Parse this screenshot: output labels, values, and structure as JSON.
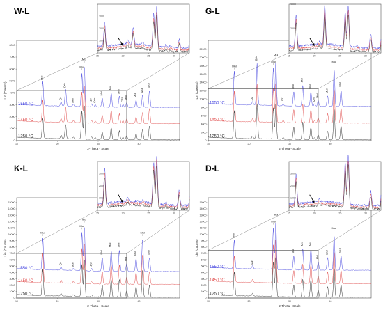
{
  "figure_title": "",
  "chart_data": [
    {
      "type": "line",
      "panel_label": "W-L",
      "xlabel": "2-Theta - Scale",
      "ylabel": "Lin (Counts)",
      "xlim": [
        10,
        50
      ],
      "ylim": [
        0,
        8000
      ],
      "x_ticks": [
        "10",
        "20",
        "30",
        "40"
      ],
      "y_ticks": [
        "0",
        "1000",
        "2000",
        "3000",
        "4000",
        "5000",
        "6000",
        "7000",
        "8000"
      ],
      "series": [
        {
          "name": "1550 °C",
          "color": "#4a4ae0",
          "offset": 2700
        },
        {
          "name": "1450 °C",
          "color": "#e04a4a",
          "offset": 1350
        },
        {
          "name": "1250 °C",
          "color": "#333333",
          "offset": 0
        }
      ],
      "peaks": [
        {
          "x": 16.4,
          "h": 2000,
          "label": "Mul"
        },
        {
          "x": 20.9,
          "h": 350,
          "label": "Qz"
        },
        {
          "x": 22.0,
          "h": 1400,
          "label": "Cris"
        },
        {
          "x": 23.9,
          "h": 180,
          "label": "Mul"
        },
        {
          "x": 26.0,
          "h": 2800,
          "label": "Mul"
        },
        {
          "x": 26.6,
          "h": 3400,
          "label": "Mul"
        },
        {
          "x": 28.4,
          "h": 250,
          "label": "Cr"
        },
        {
          "x": 29.3,
          "h": 200,
          "label": "Cris"
        },
        {
          "x": 31.0,
          "h": 750,
          "label": "Mul"
        },
        {
          "x": 33.2,
          "h": 1200,
          "label": "Mul"
        },
        {
          "x": 35.2,
          "h": 900,
          "label": "Mul"
        },
        {
          "x": 36.1,
          "h": 250,
          "label": "Cris"
        },
        {
          "x": 37.0,
          "h": 400,
          "label": "Mul"
        },
        {
          "x": 39.3,
          "h": 600,
          "label": "Mul"
        },
        {
          "x": 40.9,
          "h": 1000,
          "label": "Mul"
        },
        {
          "x": 42.6,
          "h": 1400,
          "label": "Mul"
        }
      ],
      "temperatures": [
        "1550 °C",
        "1450 °C",
        "1250 °C"
      ],
      "inset": {
        "xlim": [
          15,
          33
        ],
        "x_ticks": [
          "15",
          "20",
          "25",
          "30"
        ],
        "y_ticks": [
          "1000",
          "2000",
          "3000"
        ]
      },
      "zoom_box": {
        "xlim": [
          10,
          37
        ],
        "ylim": [
          0,
          4200
        ]
      }
    },
    {
      "type": "line",
      "panel_label": "G-L",
      "xlabel": "2-Theta - Scale",
      "ylabel": "Lin (Counts)",
      "xlim": [
        10,
        50
      ],
      "ylim": [
        0,
        23000
      ],
      "x_ticks": [
        "10",
        "20",
        "30",
        "40"
      ],
      "y_ticks": [
        "0",
        "2000",
        "4000",
        "6000",
        "8000",
        "10000",
        "12000",
        "14000",
        "16000",
        "18000",
        "20000",
        "22000"
      ],
      "series": [
        {
          "name": "1550 °C",
          "color": "#4a4ae0",
          "offset": 8000
        },
        {
          "name": "1450 °C",
          "color": "#e04a4a",
          "offset": 4000
        },
        {
          "name": "1250 °C",
          "color": "#333333",
          "offset": 0
        }
      ],
      "peaks": [
        {
          "x": 16.4,
          "h": 8000,
          "label": "Mul"
        },
        {
          "x": 20.9,
          "h": 800,
          "label": "Qz"
        },
        {
          "x": 22.0,
          "h": 10000,
          "label": "Cris"
        },
        {
          "x": 26.0,
          "h": 9000,
          "label": "Mul"
        },
        {
          "x": 26.6,
          "h": 10500,
          "label": "Mul"
        },
        {
          "x": 28.4,
          "h": 600,
          "label": "Cr"
        },
        {
          "x": 31.0,
          "h": 3500,
          "label": "Mul"
        },
        {
          "x": 33.2,
          "h": 5000,
          "label": "Mul"
        },
        {
          "x": 35.2,
          "h": 3500,
          "label": "Mul"
        },
        {
          "x": 36.1,
          "h": 600,
          "label": "Cris"
        },
        {
          "x": 37.0,
          "h": 1400,
          "label": "Mul"
        },
        {
          "x": 39.3,
          "h": 2500,
          "label": "Mul"
        },
        {
          "x": 40.9,
          "h": 9000,
          "label": "Mul"
        },
        {
          "x": 42.6,
          "h": 4000,
          "label": "Mul"
        }
      ],
      "temperatures": [
        "1550 °C",
        "1450 °C",
        "1250 °C"
      ],
      "inset": {
        "xlim": [
          15,
          33
        ],
        "x_ticks": [
          "15",
          "20",
          "25",
          "30"
        ],
        "y_ticks": [
          "2000",
          "4000",
          "6000"
        ]
      },
      "zoom_box": {
        "xlim": [
          10,
          37
        ],
        "ylim": [
          0,
          12500
        ]
      }
    },
    {
      "type": "line",
      "panel_label": "K-L",
      "xlabel": "2-Theta - Scale",
      "ylabel": "Lin (Counts)",
      "xlim": [
        10,
        50
      ],
      "ylim": [
        0,
        15000
      ],
      "x_ticks": [
        "10",
        "20",
        "30",
        "40"
      ],
      "y_ticks": [
        "0",
        "1000",
        "2000",
        "3000",
        "4000",
        "5000",
        "6000",
        "7000",
        "8000",
        "9000",
        "10000",
        "11000",
        "12000",
        "13000",
        "14000",
        "15000"
      ],
      "series": [
        {
          "name": "1550 °C",
          "color": "#4a4ae0",
          "offset": 4000
        },
        {
          "name": "1450 °C",
          "color": "#e04a4a",
          "offset": 2000
        },
        {
          "name": "1250 °C",
          "color": "#333333",
          "offset": 0
        }
      ],
      "peaks": [
        {
          "x": 16.4,
          "h": 5000,
          "label": "Mul"
        },
        {
          "x": 20.9,
          "h": 500,
          "label": "Qz"
        },
        {
          "x": 23.9,
          "h": 300,
          "label": "Mul"
        },
        {
          "x": 26.0,
          "h": 6000,
          "label": "Mul"
        },
        {
          "x": 26.6,
          "h": 7000,
          "label": "Mul"
        },
        {
          "x": 28.4,
          "h": 400,
          "label": "Qz"
        },
        {
          "x": 31.0,
          "h": 2200,
          "label": "Mul"
        },
        {
          "x": 33.2,
          "h": 3300,
          "label": "Mul"
        },
        {
          "x": 35.2,
          "h": 3300,
          "label": "Mul"
        },
        {
          "x": 37.0,
          "h": 1200,
          "label": "Mul"
        },
        {
          "x": 39.3,
          "h": 2000,
          "label": "Mul"
        },
        {
          "x": 40.9,
          "h": 5000,
          "label": "Mul"
        },
        {
          "x": 42.6,
          "h": 2200,
          "label": "Mul"
        }
      ],
      "temperatures": [
        "1550 °C",
        "1450 °C",
        "1250 °C"
      ],
      "inset": {
        "xlim": [
          15,
          33
        ],
        "x_ticks": [
          "15",
          "20",
          "25",
          "30"
        ],
        "y_ticks": [
          "1000",
          "2000",
          "3000"
        ]
      },
      "zoom_box": {
        "xlim": [
          10,
          37
        ],
        "ylim": [
          0,
          7000
        ]
      }
    },
    {
      "type": "line",
      "panel_label": "D-L",
      "xlabel": "2-Theta - Scale",
      "ylabel": "Lin (Counts)",
      "xlim": [
        10,
        50
      ],
      "ylim": [
        0,
        15000
      ],
      "x_ticks": [
        "10",
        "20",
        "30",
        "40"
      ],
      "y_ticks": [
        "0",
        "1000",
        "2000",
        "3000",
        "4000",
        "5000",
        "6000",
        "7000",
        "8000",
        "9000",
        "10000",
        "11000",
        "12000",
        "13000",
        "14000",
        "15000"
      ],
      "series": [
        {
          "name": "1550 °C",
          "color": "#4a4ae0",
          "offset": 4200
        },
        {
          "name": "1450 °C",
          "color": "#e04a4a",
          "offset": 2100
        },
        {
          "name": "1250 °C",
          "color": "#333333",
          "offset": 0
        }
      ],
      "peaks": [
        {
          "x": 16.4,
          "h": 4500,
          "label": "Mul"
        },
        {
          "x": 20.9,
          "h": 500,
          "label": "Qz"
        },
        {
          "x": 26.0,
          "h": 6500,
          "label": "Mul"
        },
        {
          "x": 26.6,
          "h": 7500,
          "label": "Mul"
        },
        {
          "x": 31.0,
          "h": 2200,
          "label": "Mul"
        },
        {
          "x": 33.2,
          "h": 3300,
          "label": "Mul"
        },
        {
          "x": 35.2,
          "h": 3300,
          "label": "Mul"
        },
        {
          "x": 37.0,
          "h": 1300,
          "label": "Mul"
        },
        {
          "x": 39.3,
          "h": 2000,
          "label": "Mul"
        },
        {
          "x": 40.9,
          "h": 5500,
          "label": "Mul"
        },
        {
          "x": 42.6,
          "h": 2300,
          "label": "Mul"
        }
      ],
      "temperatures": [
        "1550 °C",
        "1450 °C",
        "1250 °C"
      ],
      "inset": {
        "xlim": [
          15,
          33
        ],
        "x_ticks": [
          "15",
          "20",
          "25",
          "30"
        ],
        "y_ticks": [
          "1000",
          "2000",
          "3000"
        ]
      },
      "zoom_box": {
        "xlim": [
          10,
          37
        ],
        "ylim": [
          0,
          7500
        ]
      }
    }
  ],
  "colors": {
    "axis": "#555555",
    "grid": "#e6e6e6",
    "zoom_box": "#444444",
    "arrow": "#000000"
  }
}
